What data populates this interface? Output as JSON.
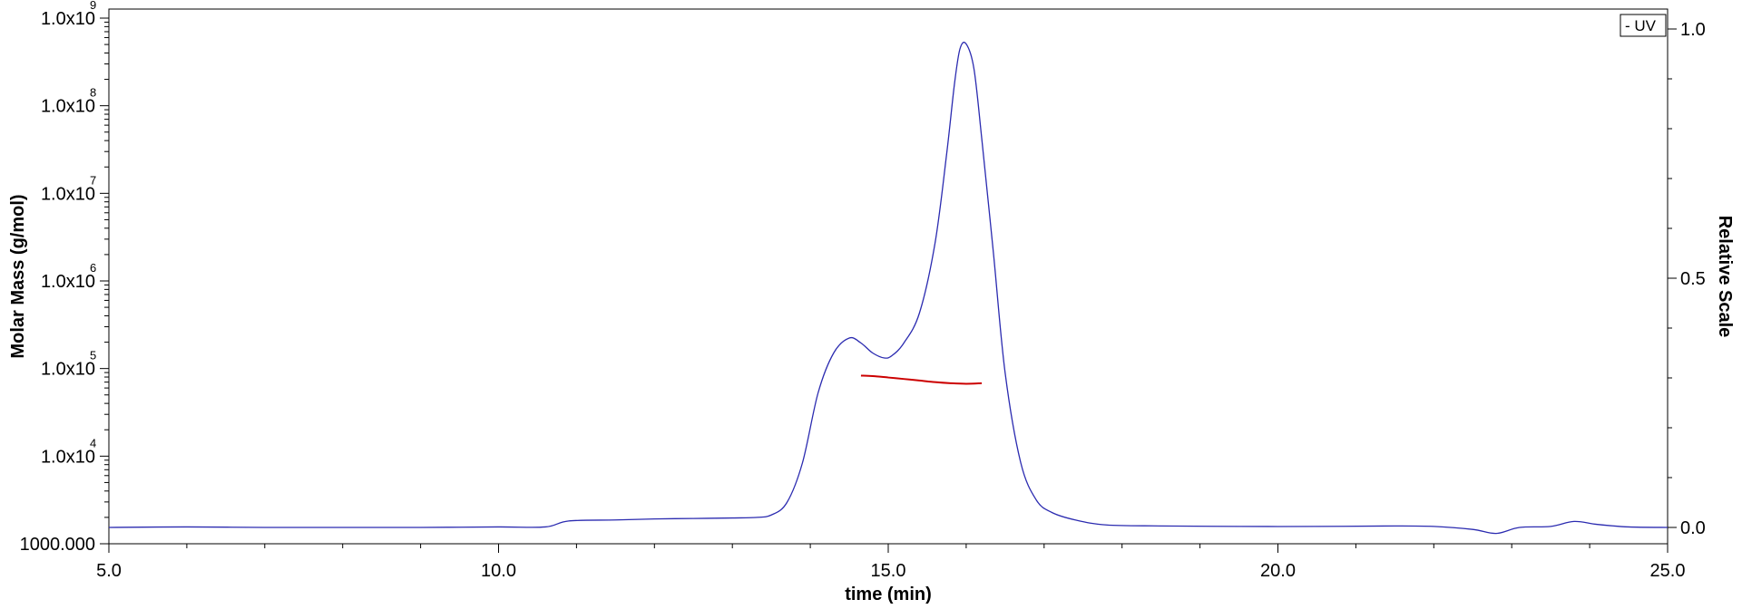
{
  "chart_data": {
    "type": "line",
    "title": "",
    "xlabel": "time (min)",
    "ylabel_left": "Molar Mass (g/mol)",
    "ylabel_right": "Relative Scale",
    "xlim": [
      5.0,
      25.0
    ],
    "ylim_left": [
      1000,
      1000000000
    ],
    "y_left_scale": "log",
    "ylim_right": [
      -0.01,
      1.02
    ],
    "x_ticks": [
      5.0,
      10.0,
      15.0,
      20.0,
      25.0
    ],
    "x_tick_labels": [
      "5.0",
      "10.0",
      "15.0",
      "20.0",
      "25.0"
    ],
    "y_left_tick_labels": [
      {
        "value": 1000,
        "base": "1000.000",
        "exp": ""
      },
      {
        "value": 10000,
        "base": "1.0x10",
        "exp": "4"
      },
      {
        "value": 100000,
        "base": "1.0x10",
        "exp": "5"
      },
      {
        "value": 1000000,
        "base": "1.0x10",
        "exp": "6"
      },
      {
        "value": 10000000,
        "base": "1.0x10",
        "exp": "7"
      },
      {
        "value": 100000000,
        "base": "1.0x10",
        "exp": "8"
      },
      {
        "value": 1000000000,
        "base": "1.0x10",
        "exp": "9"
      }
    ],
    "y_right_ticks": [
      0.0,
      0.5,
      1.0
    ],
    "y_right_tick_labels": [
      "0.0",
      "0.5",
      "1.0"
    ],
    "legend": {
      "position": "top-right",
      "entries": [
        {
          "label": "- UV"
        }
      ]
    },
    "series": [
      {
        "name": "UV",
        "axis": "right",
        "color": "#2b2bb0",
        "x": [
          5.0,
          6.0,
          7.0,
          8.0,
          9.0,
          10.0,
          10.6,
          10.9,
          11.5,
          12.0,
          12.5,
          13.0,
          13.3,
          13.5,
          13.7,
          13.9,
          14.1,
          14.3,
          14.5,
          14.65,
          14.8,
          14.95,
          15.05,
          15.2,
          15.4,
          15.6,
          15.75,
          15.85,
          15.92,
          16.0,
          16.1,
          16.2,
          16.35,
          16.5,
          16.7,
          16.9,
          17.1,
          17.4,
          17.8,
          18.5,
          19.5,
          20.5,
          21.5,
          22.0,
          22.5,
          22.8,
          23.1,
          23.5,
          23.8,
          24.1,
          24.5,
          25.0
        ],
        "y": [
          0.0,
          0.001,
          0.0,
          0.0,
          0.0,
          0.001,
          0.001,
          0.013,
          0.015,
          0.017,
          0.018,
          0.019,
          0.02,
          0.025,
          0.05,
          0.13,
          0.27,
          0.35,
          0.38,
          0.37,
          0.35,
          0.34,
          0.345,
          0.37,
          0.43,
          0.57,
          0.75,
          0.89,
          0.96,
          0.97,
          0.92,
          0.78,
          0.55,
          0.31,
          0.13,
          0.055,
          0.03,
          0.015,
          0.005,
          0.003,
          0.002,
          0.002,
          0.003,
          0.002,
          -0.004,
          -0.012,
          0.0,
          0.002,
          0.012,
          0.006,
          0.001,
          0.0
        ]
      },
      {
        "name": "Molar Mass",
        "axis": "left",
        "color": "#cc0000",
        "x": [
          14.65,
          14.8,
          15.0,
          15.2,
          15.4,
          15.6,
          15.8,
          16.0,
          16.2
        ],
        "y": [
          83000,
          82000,
          79000,
          76000,
          73000,
          70000,
          68000,
          67000,
          68000
        ]
      }
    ]
  }
}
